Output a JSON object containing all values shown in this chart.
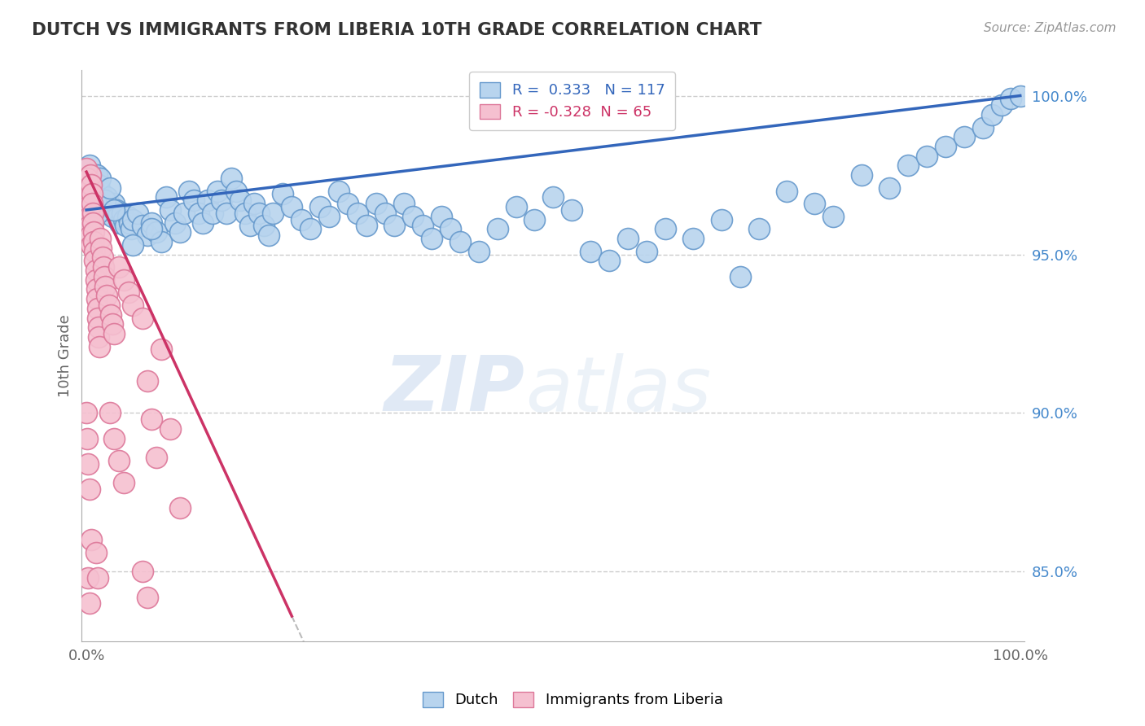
{
  "title": "DUTCH VS IMMIGRANTS FROM LIBERIA 10TH GRADE CORRELATION CHART",
  "source": "Source: ZipAtlas.com",
  "ylabel": "10th Grade",
  "xlim": [
    -0.005,
    1.005
  ],
  "ylim": [
    0.828,
    1.008
  ],
  "x_ticks": [
    0.0,
    1.0
  ],
  "x_tick_labels": [
    "0.0%",
    "100.0%"
  ],
  "y_ticks": [
    0.85,
    0.9,
    0.95,
    1.0
  ],
  "y_tick_labels": [
    "85.0%",
    "90.0%",
    "95.0%",
    "100.0%"
  ],
  "legend_blue_r": "0.333",
  "legend_blue_n": "117",
  "legend_pink_r": "-0.328",
  "legend_pink_n": "65",
  "blue_color": "#b8d4ee",
  "blue_edge": "#6699cc",
  "pink_color": "#f5c0d0",
  "pink_edge": "#dd7799",
  "blue_line_color": "#3366bb",
  "pink_line_color": "#cc3366",
  "watermark_zip": "ZIP",
  "watermark_atlas": "atlas",
  "blue_dots": [
    [
      0.003,
      0.978
    ],
    [
      0.005,
      0.975
    ],
    [
      0.006,
      0.973
    ],
    [
      0.007,
      0.971
    ],
    [
      0.008,
      0.972
    ],
    [
      0.009,
      0.97
    ],
    [
      0.01,
      0.969
    ],
    [
      0.011,
      0.975
    ],
    [
      0.012,
      0.968
    ],
    [
      0.013,
      0.972
    ],
    [
      0.014,
      0.966
    ],
    [
      0.015,
      0.97
    ],
    [
      0.016,
      0.964
    ],
    [
      0.018,
      0.967
    ],
    [
      0.019,
      0.965
    ],
    [
      0.02,
      0.963
    ],
    [
      0.022,
      0.968
    ],
    [
      0.024,
      0.966
    ],
    [
      0.026,
      0.964
    ],
    [
      0.028,
      0.962
    ],
    [
      0.03,
      0.966
    ],
    [
      0.032,
      0.964
    ],
    [
      0.034,
      0.962
    ],
    [
      0.036,
      0.96
    ],
    [
      0.038,
      0.963
    ],
    [
      0.04,
      0.961
    ],
    [
      0.042,
      0.959
    ],
    [
      0.044,
      0.962
    ],
    [
      0.046,
      0.96
    ],
    [
      0.048,
      0.958
    ],
    [
      0.05,
      0.961
    ],
    [
      0.055,
      0.963
    ],
    [
      0.06,
      0.959
    ],
    [
      0.065,
      0.956
    ],
    [
      0.07,
      0.96
    ],
    [
      0.075,
      0.957
    ],
    [
      0.08,
      0.954
    ],
    [
      0.085,
      0.968
    ],
    [
      0.09,
      0.964
    ],
    [
      0.095,
      0.96
    ],
    [
      0.1,
      0.957
    ],
    [
      0.105,
      0.963
    ],
    [
      0.11,
      0.97
    ],
    [
      0.115,
      0.967
    ],
    [
      0.12,
      0.963
    ],
    [
      0.125,
      0.96
    ],
    [
      0.13,
      0.967
    ],
    [
      0.135,
      0.963
    ],
    [
      0.14,
      0.97
    ],
    [
      0.145,
      0.967
    ],
    [
      0.15,
      0.963
    ],
    [
      0.155,
      0.974
    ],
    [
      0.16,
      0.97
    ],
    [
      0.165,
      0.967
    ],
    [
      0.17,
      0.963
    ],
    [
      0.175,
      0.959
    ],
    [
      0.18,
      0.966
    ],
    [
      0.185,
      0.963
    ],
    [
      0.19,
      0.959
    ],
    [
      0.195,
      0.956
    ],
    [
      0.2,
      0.963
    ],
    [
      0.21,
      0.969
    ],
    [
      0.22,
      0.965
    ],
    [
      0.23,
      0.961
    ],
    [
      0.24,
      0.958
    ],
    [
      0.25,
      0.965
    ],
    [
      0.26,
      0.962
    ],
    [
      0.27,
      0.97
    ],
    [
      0.28,
      0.966
    ],
    [
      0.29,
      0.963
    ],
    [
      0.3,
      0.959
    ],
    [
      0.31,
      0.966
    ],
    [
      0.32,
      0.963
    ],
    [
      0.33,
      0.959
    ],
    [
      0.34,
      0.966
    ],
    [
      0.35,
      0.962
    ],
    [
      0.36,
      0.959
    ],
    [
      0.37,
      0.955
    ],
    [
      0.38,
      0.962
    ],
    [
      0.39,
      0.958
    ],
    [
      0.4,
      0.954
    ],
    [
      0.42,
      0.951
    ],
    [
      0.44,
      0.958
    ],
    [
      0.46,
      0.965
    ],
    [
      0.48,
      0.961
    ],
    [
      0.5,
      0.968
    ],
    [
      0.52,
      0.964
    ],
    [
      0.54,
      0.951
    ],
    [
      0.56,
      0.948
    ],
    [
      0.58,
      0.955
    ],
    [
      0.6,
      0.951
    ],
    [
      0.62,
      0.958
    ],
    [
      0.65,
      0.955
    ],
    [
      0.68,
      0.961
    ],
    [
      0.7,
      0.943
    ],
    [
      0.72,
      0.958
    ],
    [
      0.75,
      0.97
    ],
    [
      0.78,
      0.966
    ],
    [
      0.8,
      0.962
    ],
    [
      0.83,
      0.975
    ],
    [
      0.86,
      0.971
    ],
    [
      0.88,
      0.978
    ],
    [
      0.9,
      0.981
    ],
    [
      0.92,
      0.984
    ],
    [
      0.94,
      0.987
    ],
    [
      0.96,
      0.99
    ],
    [
      0.97,
      0.994
    ],
    [
      0.98,
      0.997
    ],
    [
      0.99,
      0.999
    ],
    [
      1.0,
      1.0
    ],
    [
      0.008,
      0.97
    ],
    [
      0.01,
      0.966
    ],
    [
      0.012,
      0.963
    ],
    [
      0.015,
      0.974
    ],
    [
      0.02,
      0.967
    ],
    [
      0.025,
      0.971
    ],
    [
      0.03,
      0.964
    ],
    [
      0.05,
      0.953
    ],
    [
      0.07,
      0.958
    ]
  ],
  "pink_dots": [
    [
      0.0,
      0.977
    ],
    [
      0.001,
      0.974
    ],
    [
      0.001,
      0.971
    ],
    [
      0.002,
      0.968
    ],
    [
      0.002,
      0.965
    ],
    [
      0.003,
      0.962
    ],
    [
      0.003,
      0.959
    ],
    [
      0.004,
      0.975
    ],
    [
      0.004,
      0.956
    ],
    [
      0.005,
      0.972
    ],
    [
      0.005,
      0.953
    ],
    [
      0.006,
      0.969
    ],
    [
      0.006,
      0.966
    ],
    [
      0.007,
      0.963
    ],
    [
      0.007,
      0.96
    ],
    [
      0.008,
      0.957
    ],
    [
      0.008,
      0.954
    ],
    [
      0.009,
      0.951
    ],
    [
      0.009,
      0.948
    ],
    [
      0.01,
      0.945
    ],
    [
      0.01,
      0.942
    ],
    [
      0.011,
      0.939
    ],
    [
      0.011,
      0.936
    ],
    [
      0.012,
      0.933
    ],
    [
      0.012,
      0.93
    ],
    [
      0.013,
      0.927
    ],
    [
      0.013,
      0.924
    ],
    [
      0.014,
      0.921
    ],
    [
      0.015,
      0.955
    ],
    [
      0.016,
      0.952
    ],
    [
      0.017,
      0.949
    ],
    [
      0.018,
      0.946
    ],
    [
      0.019,
      0.943
    ],
    [
      0.02,
      0.94
    ],
    [
      0.022,
      0.937
    ],
    [
      0.024,
      0.934
    ],
    [
      0.026,
      0.931
    ],
    [
      0.028,
      0.928
    ],
    [
      0.03,
      0.925
    ],
    [
      0.035,
      0.946
    ],
    [
      0.04,
      0.942
    ],
    [
      0.045,
      0.938
    ],
    [
      0.05,
      0.934
    ],
    [
      0.06,
      0.93
    ],
    [
      0.065,
      0.91
    ],
    [
      0.07,
      0.898
    ],
    [
      0.075,
      0.886
    ],
    [
      0.08,
      0.92
    ],
    [
      0.09,
      0.895
    ],
    [
      0.1,
      0.87
    ],
    [
      0.03,
      0.892
    ],
    [
      0.035,
      0.885
    ],
    [
      0.04,
      0.878
    ],
    [
      0.025,
      0.9
    ],
    [
      0.0,
      0.9
    ],
    [
      0.001,
      0.892
    ],
    [
      0.002,
      0.884
    ],
    [
      0.003,
      0.876
    ],
    [
      0.005,
      0.86
    ],
    [
      0.002,
      0.848
    ],
    [
      0.003,
      0.84
    ],
    [
      0.01,
      0.856
    ],
    [
      0.012,
      0.848
    ],
    [
      0.06,
      0.85
    ],
    [
      0.065,
      0.842
    ]
  ],
  "blue_line": [
    [
      0.0,
      0.964
    ],
    [
      1.0,
      1.0
    ]
  ],
  "pink_line_solid": [
    [
      0.0,
      0.976
    ],
    [
      0.22,
      0.836
    ]
  ],
  "pink_line_dash": [
    [
      0.22,
      0.836
    ],
    [
      1.0,
      0.34
    ]
  ]
}
